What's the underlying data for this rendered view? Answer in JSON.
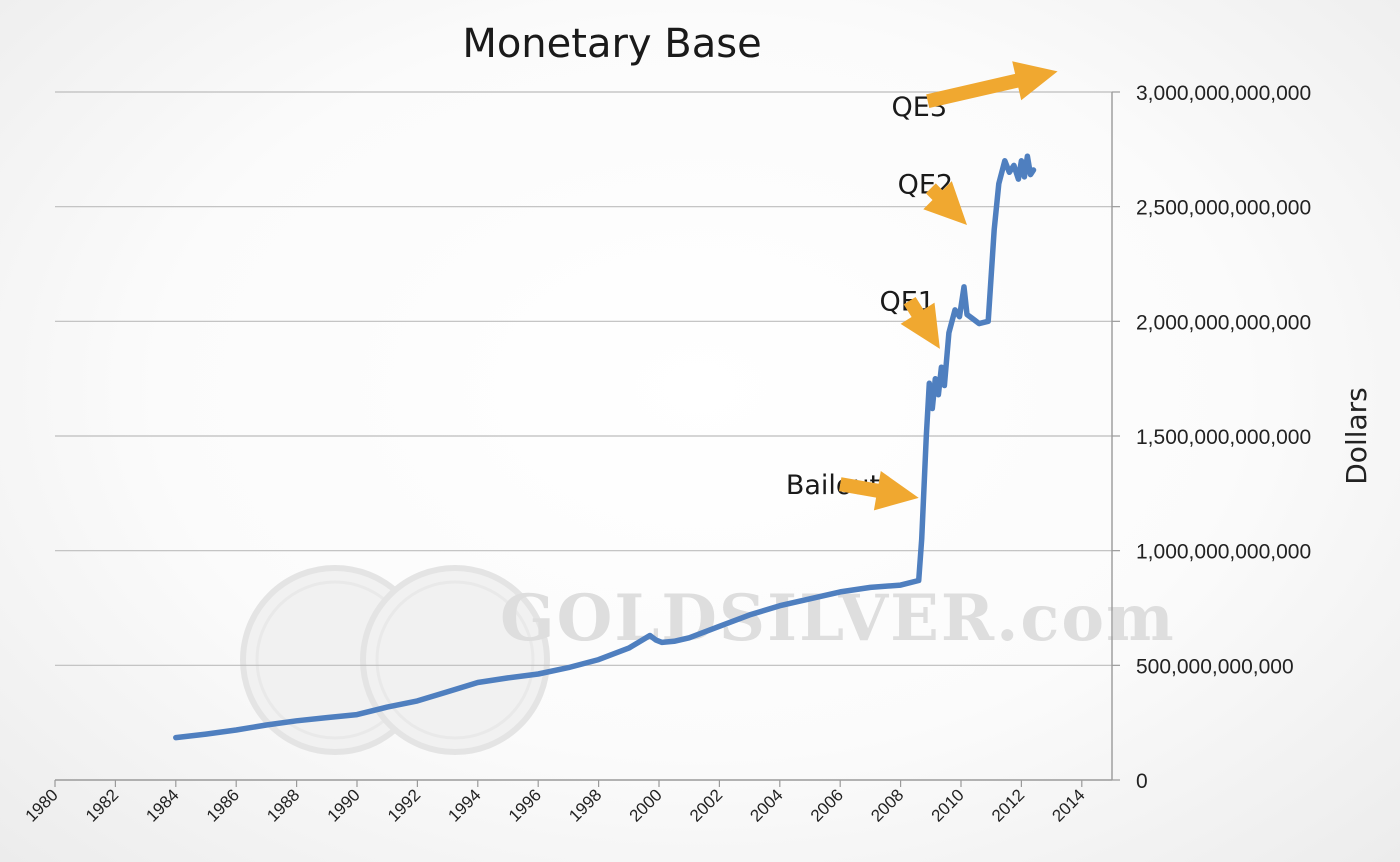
{
  "chart_data": {
    "type": "line",
    "title": "Monetary Base",
    "ylabel": "Dollars",
    "xlabel": "",
    "xlim": [
      1980,
      2015
    ],
    "ylim": [
      0,
      3000000000000
    ],
    "x_ticks": [
      1980,
      1982,
      1984,
      1986,
      1988,
      1990,
      1992,
      1994,
      1996,
      1998,
      2000,
      2002,
      2004,
      2006,
      2008,
      2010,
      2012,
      2014
    ],
    "x_tick_labels": [
      "1980",
      "1982",
      "1984",
      "1986",
      "1988",
      "1990",
      "1992",
      "1994",
      "1996",
      "1998",
      "2000",
      "2002",
      "2004",
      "2006",
      "2008",
      "2010",
      "2012",
      "2014"
    ],
    "y_ticks": [
      0,
      500000000000,
      1000000000000,
      1500000000000,
      2000000000000,
      2500000000000,
      3000000000000
    ],
    "y_tick_labels": [
      "0",
      "500,000,000,000",
      "1,000,000,000,000",
      "1,500,000,000,000",
      "2,000,000,000,000",
      "2,500,000,000,000",
      "3,000,000,000,000"
    ],
    "grid": "horizontal",
    "y_axis_side": "right",
    "series": [
      {
        "color": "#4f7fbf",
        "x": [
          1984.0,
          1985.0,
          1986.0,
          1987.0,
          1988.0,
          1989.0,
          1990.0,
          1991.0,
          1992.0,
          1993.0,
          1994.0,
          1995.0,
          1996.0,
          1997.0,
          1998.0,
          1999.0,
          1999.7,
          1999.9,
          2000.1,
          2000.5,
          2001.0,
          2002.0,
          2003.0,
          2004.0,
          2005.0,
          2006.0,
          2007.0,
          2008.0,
          2008.6,
          2008.7,
          2008.85,
          2008.95,
          2009.05,
          2009.15,
          2009.25,
          2009.35,
          2009.45,
          2009.6,
          2009.8,
          2009.95,
          2010.1,
          2010.2,
          2010.4,
          2010.6,
          2010.9,
          2011.1,
          2011.25,
          2011.45,
          2011.6,
          2011.75,
          2011.9,
          2012.0,
          2012.1,
          2012.2,
          2012.3,
          2012.4
        ],
        "y": [
          185000000000,
          200000000000,
          218000000000,
          240000000000,
          258000000000,
          272000000000,
          285000000000,
          318000000000,
          345000000000,
          385000000000,
          425000000000,
          445000000000,
          462000000000,
          490000000000,
          525000000000,
          575000000000,
          630000000000,
          610000000000,
          600000000000,
          605000000000,
          620000000000,
          670000000000,
          720000000000,
          760000000000,
          790000000000,
          820000000000,
          840000000000,
          850000000000,
          870000000000,
          1050000000000,
          1500000000000,
          1730000000000,
          1620000000000,
          1750000000000,
          1680000000000,
          1800000000000,
          1720000000000,
          1950000000000,
          2050000000000,
          2020000000000,
          2150000000000,
          2030000000000,
          2010000000000,
          1990000000000,
          2000000000000,
          2400000000000,
          2600000000000,
          2700000000000,
          2650000000000,
          2680000000000,
          2620000000000,
          2700000000000,
          2630000000000,
          2720000000000,
          2640000000000,
          2660000000000
        ]
      }
    ],
    "annotations": [
      {
        "text": "Bailouts",
        "text_x": 2004.2,
        "text_y": 1290000000000,
        "arrow_from": [
          2006.0,
          1290000000000
        ],
        "arrow_to": [
          2008.6,
          1230000000000
        ]
      },
      {
        "text": "QE1",
        "text_x": 2007.3,
        "text_y": 2090000000000,
        "arrow_from": [
          2008.3,
          2090000000000
        ],
        "arrow_to": [
          2009.3,
          1880000000000
        ]
      },
      {
        "text": "QE2",
        "text_x": 2007.9,
        "text_y": 2600000000000,
        "arrow_from": [
          2009.0,
          2580000000000
        ],
        "arrow_to": [
          2010.2,
          2420000000000
        ]
      },
      {
        "text": "QE3",
        "text_x": 2007.7,
        "text_y": 2940000000000,
        "arrow_from": [
          2008.9,
          2960000000000
        ],
        "arrow_to": [
          2013.2,
          3090000000000
        ]
      }
    ],
    "arrow_color": "#f0a830",
    "watermark": "GOLDSILVER.com"
  }
}
